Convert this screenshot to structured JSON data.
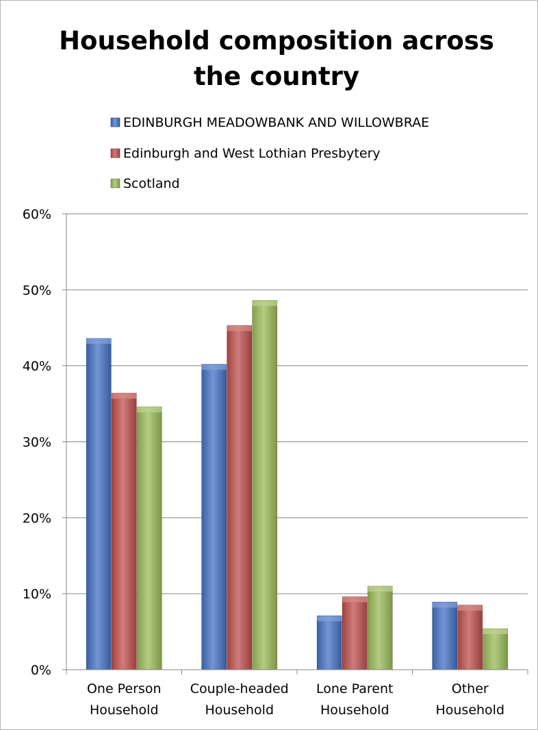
{
  "chart_data": {
    "type": "bar",
    "title": "Household composition across the country",
    "title_lines": [
      "Household composition across",
      "the country"
    ],
    "categories": [
      {
        "label": "One Person Household",
        "lines": [
          "One Person",
          "Household"
        ]
      },
      {
        "label": "Couple-headed Household",
        "lines": [
          "Couple-headed",
          "Household"
        ]
      },
      {
        "label": "Lone Parent Household",
        "lines": [
          "Lone Parent",
          "Household"
        ]
      },
      {
        "label": "Other Household",
        "lines": [
          "Other",
          "Household"
        ]
      }
    ],
    "series": [
      {
        "name": "EDINBURGH MEADOWBANK AND WILLOWBRAE",
        "color": "#4472c4",
        "values": [
          43.6,
          40.2,
          7.1,
          8.9
        ]
      },
      {
        "name": "Edinburgh and West Lothian Presbytery",
        "color": "#c0504d",
        "values": [
          36.4,
          45.3,
          9.6,
          8.5
        ]
      },
      {
        "name": "Scotland",
        "color": "#9bbb59",
        "values": [
          34.6,
          48.6,
          11.0,
          5.4
        ]
      }
    ],
    "ylim": [
      0,
      60
    ],
    "yticks": [
      "0%",
      "10%",
      "20%",
      "30%",
      "40%",
      "50%",
      "60%"
    ],
    "ytick_values": [
      0,
      10,
      20,
      30,
      40,
      50,
      60
    ],
    "xlabel": "",
    "ylabel": "",
    "grid": true,
    "legend_position": "top"
  }
}
